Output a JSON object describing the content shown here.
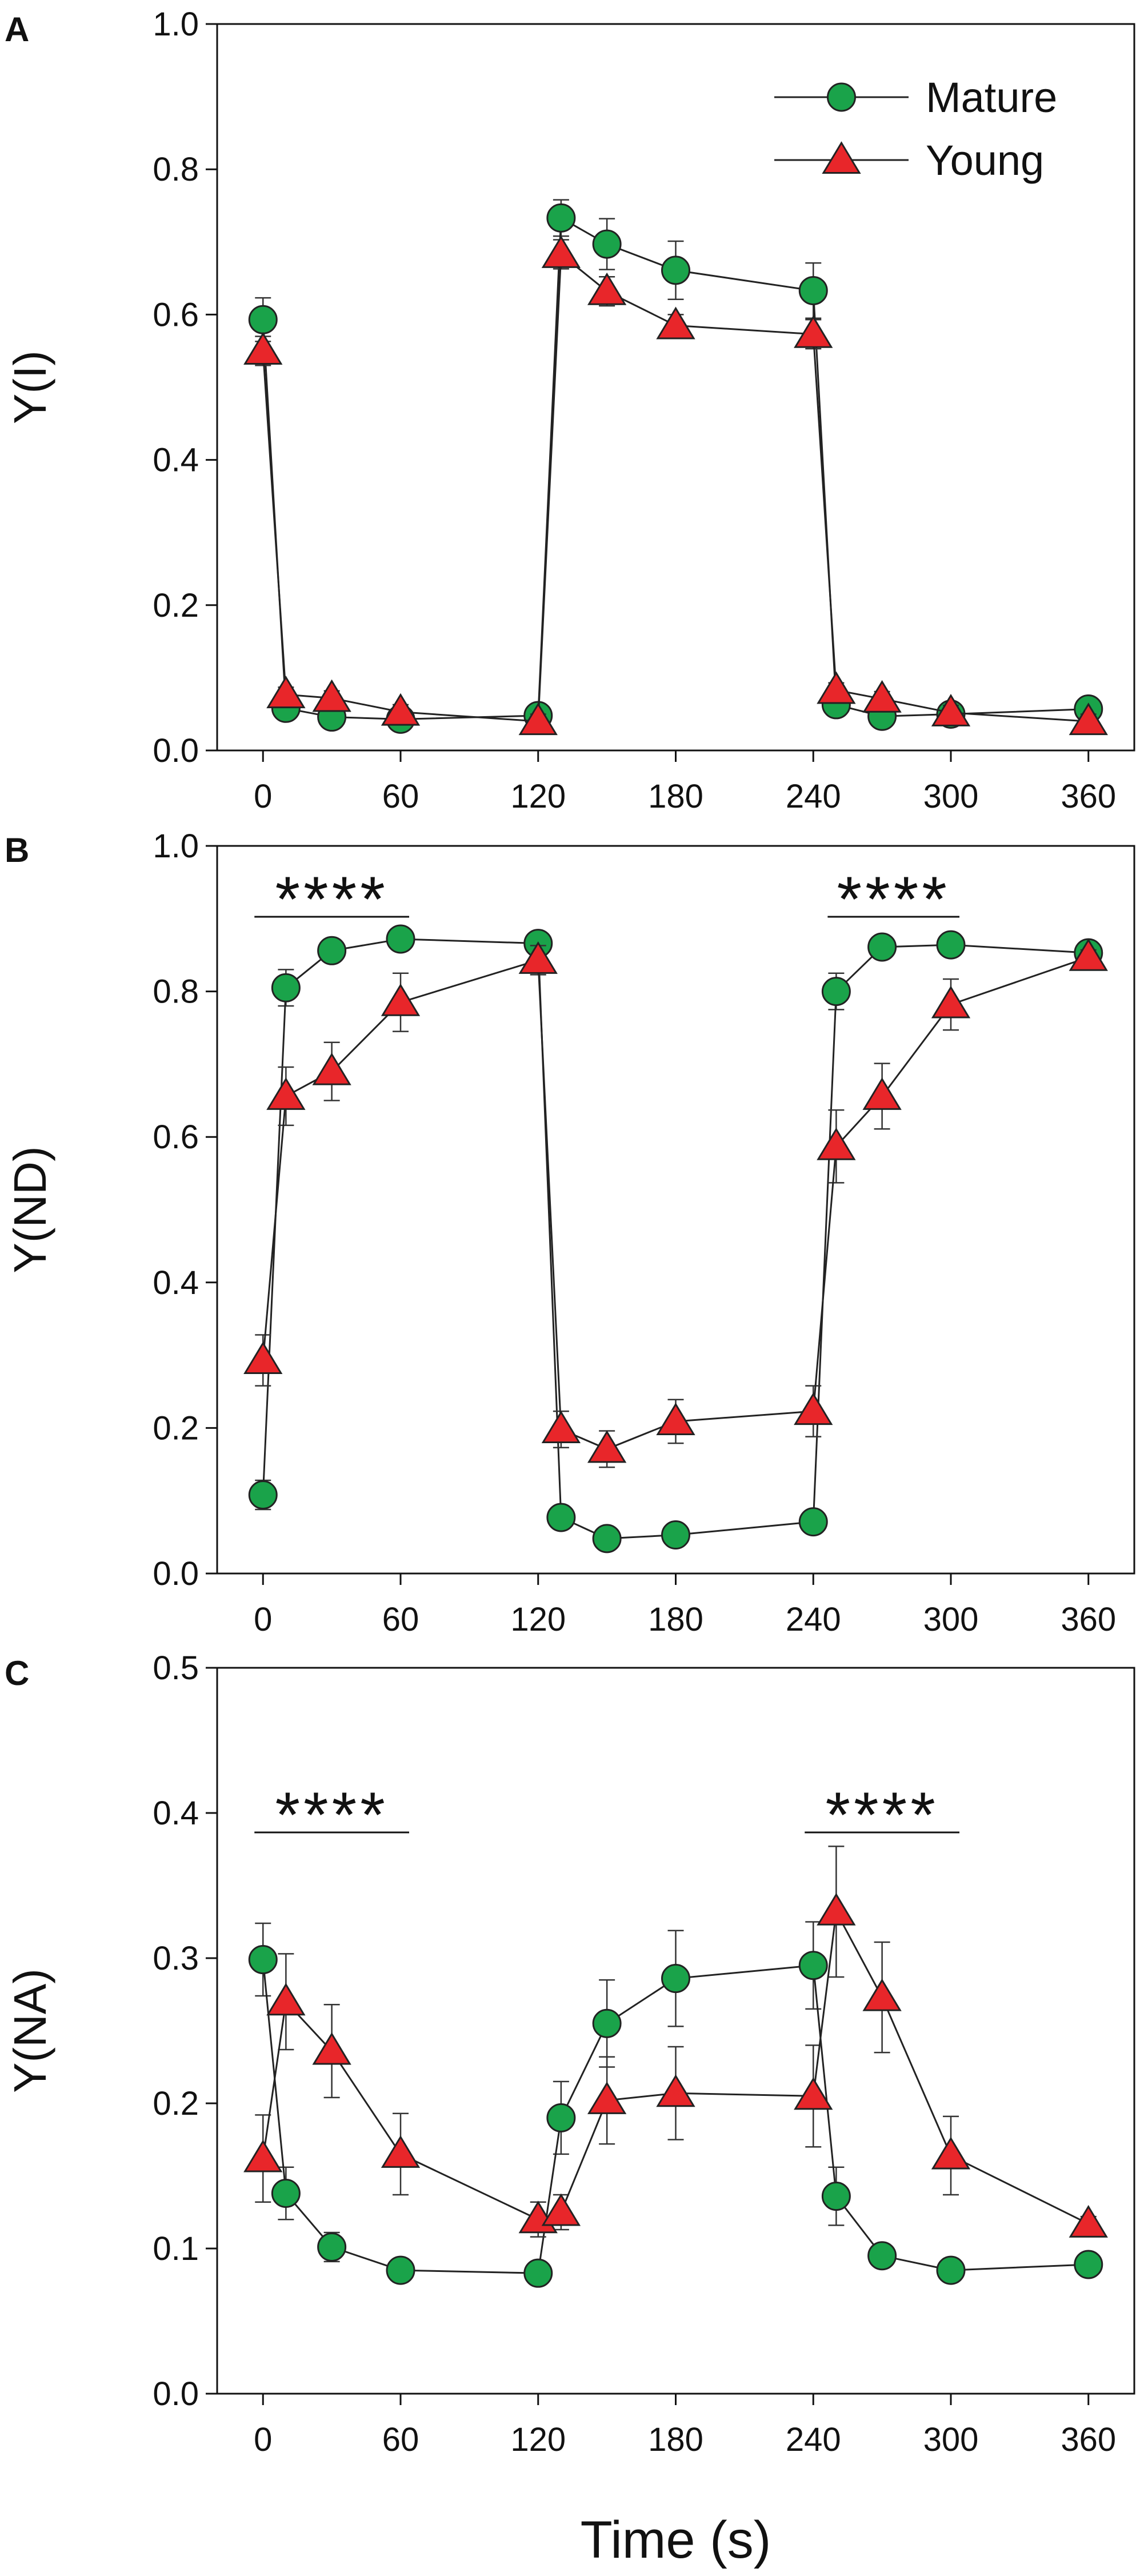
{
  "colors": {
    "mature": "#1aa34a",
    "young": "#e8262a",
    "axis": "#111111",
    "errorbar": "#333333"
  },
  "legend": [
    {
      "name": "Mature",
      "marker": "circle",
      "color": "#1aa34a"
    },
    {
      "name": "Young",
      "marker": "triangle",
      "color": "#e8262a"
    }
  ],
  "x_title": "Time (s)",
  "chart_data": [
    {
      "type": "line",
      "panel": "A",
      "ylabel": "Y(I)",
      "xlim": [
        -20,
        380
      ],
      "ylim": [
        0.0,
        1.0
      ],
      "xticks": [
        0,
        60,
        120,
        180,
        240,
        300,
        360
      ],
      "xtick_labels": [
        "0",
        "60",
        "120",
        "180",
        "240",
        "300",
        "360"
      ],
      "yticks": [
        0.0,
        0.2,
        0.4,
        0.6,
        0.8,
        1.0
      ],
      "ytick_labels": [
        "0.0",
        "0.2",
        "0.4",
        "0.6",
        "0.8",
        "1.0"
      ],
      "x": [
        0,
        10,
        30,
        60,
        120,
        130,
        150,
        180,
        240,
        250,
        270,
        300,
        360
      ],
      "series": [
        {
          "name": "Mature",
          "values": [
            0.593,
            0.058,
            0.046,
            0.043,
            0.048,
            0.733,
            0.697,
            0.661,
            0.633,
            0.063,
            0.047,
            0.05,
            0.057
          ],
          "errors": [
            0.03,
            0.01,
            0.01,
            0.01,
            0.01,
            0.025,
            0.035,
            0.04,
            0.038,
            0.01,
            0.01,
            0.01,
            0.01
          ]
        },
        {
          "name": "Young",
          "values": [
            0.55,
            0.077,
            0.072,
            0.053,
            0.04,
            0.683,
            0.632,
            0.585,
            0.573,
            0.083,
            0.071,
            0.052,
            0.04
          ],
          "errors": [
            0.02,
            0.01,
            0.01,
            0.01,
            0.01,
            0.02,
            0.02,
            0.015,
            0.02,
            0.01,
            0.01,
            0.01,
            0.01
          ]
        }
      ],
      "annotations": [],
      "legend_position": "top-right"
    },
    {
      "type": "line",
      "panel": "B",
      "ylabel": "Y(ND)",
      "xlim": [
        -20,
        380
      ],
      "ylim": [
        0.0,
        1.0
      ],
      "xticks": [
        0,
        60,
        120,
        180,
        240,
        300,
        360
      ],
      "xtick_labels": [
        "0",
        "60",
        "120",
        "180",
        "240",
        "300",
        "360"
      ],
      "yticks": [
        0.0,
        0.2,
        0.4,
        0.6,
        0.8,
        1.0
      ],
      "ytick_labels": [
        "0.0",
        "0.2",
        "0.4",
        "0.6",
        "0.8",
        "1.0"
      ],
      "x": [
        0,
        10,
        30,
        60,
        120,
        130,
        150,
        180,
        240,
        250,
        270,
        300,
        360
      ],
      "series": [
        {
          "name": "Mature",
          "values": [
            0.108,
            0.805,
            0.856,
            0.872,
            0.866,
            0.077,
            0.048,
            0.053,
            0.071,
            0.8,
            0.861,
            0.864,
            0.853
          ],
          "errors": [
            0.02,
            0.025,
            0.012,
            0.01,
            0.01,
            0.015,
            0.01,
            0.01,
            0.01,
            0.025,
            0.01,
            0.01,
            0.01
          ]
        },
        {
          "name": "Young",
          "values": [
            0.293,
            0.656,
            0.69,
            0.785,
            0.843,
            0.198,
            0.171,
            0.209,
            0.223,
            0.587,
            0.656,
            0.782,
            0.847
          ],
          "errors": [
            0.035,
            0.04,
            0.04,
            0.04,
            0.02,
            0.025,
            0.025,
            0.03,
            0.035,
            0.05,
            0.045,
            0.035,
            0.01
          ]
        }
      ],
      "annotations": [
        {
          "text": "****",
          "x_start": 0,
          "x_end": 60
        },
        {
          "text": "****",
          "x_start": 250,
          "x_end": 300
        }
      ],
      "legend_position": "none"
    },
    {
      "type": "line",
      "panel": "C",
      "ylabel": "Y(NA)",
      "xlim": [
        -20,
        380
      ],
      "ylim": [
        0.0,
        0.5
      ],
      "xticks": [
        0,
        60,
        120,
        180,
        240,
        300,
        360
      ],
      "xtick_labels": [
        "0",
        "60",
        "120",
        "180",
        "240",
        "300",
        "360"
      ],
      "yticks": [
        0.0,
        0.1,
        0.2,
        0.3,
        0.4,
        0.5
      ],
      "ytick_labels": [
        "0.0",
        "0.1",
        "0.2",
        "0.3",
        "0.4",
        "0.5"
      ],
      "x": [
        0,
        10,
        30,
        60,
        120,
        130,
        150,
        180,
        240,
        250,
        270,
        300,
        360
      ],
      "series": [
        {
          "name": "Mature",
          "values": [
            0.299,
            0.138,
            0.101,
            0.085,
            0.083,
            0.19,
            0.255,
            0.286,
            0.295,
            0.136,
            0.095,
            0.085,
            0.089
          ],
          "errors": [
            0.025,
            0.018,
            0.01,
            0.008,
            0.008,
            0.025,
            0.03,
            0.033,
            0.03,
            0.02,
            0.008,
            0.008,
            0.008
          ]
        },
        {
          "name": "Young",
          "values": [
            0.162,
            0.27,
            0.236,
            0.165,
            0.12,
            0.125,
            0.202,
            0.207,
            0.205,
            0.332,
            0.273,
            0.164,
            0.117
          ],
          "errors": [
            0.03,
            0.033,
            0.032,
            0.028,
            0.012,
            0.012,
            0.03,
            0.032,
            0.035,
            0.045,
            0.038,
            0.027,
            0.005
          ]
        }
      ],
      "annotations": [
        {
          "text": "****",
          "x_start": 0,
          "x_end": 60
        },
        {
          "text": "****",
          "x_start": 240,
          "x_end": 300
        }
      ],
      "legend_position": "none"
    }
  ]
}
